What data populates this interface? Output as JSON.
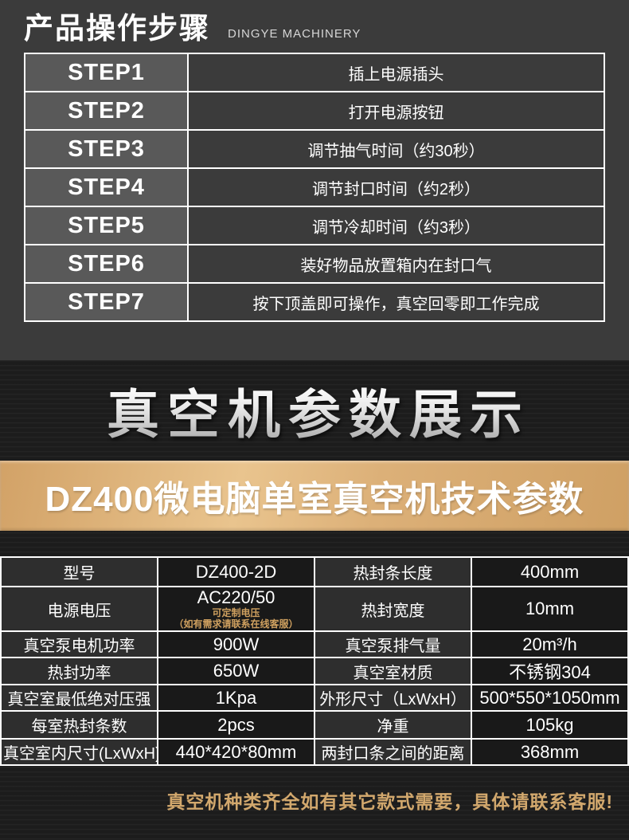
{
  "header": {
    "title": "产品操作步骤",
    "subtitle": "DINGYE MACHINERY"
  },
  "steps": [
    {
      "step": "STEP1",
      "desc": "插上电源插头"
    },
    {
      "step": "STEP2",
      "desc": "打开电源按钮"
    },
    {
      "step": "STEP3",
      "desc": "调节抽气时间（约30秒）"
    },
    {
      "step": "STEP4",
      "desc": "调节封口时间（约2秒）"
    },
    {
      "step": "STEP5",
      "desc": "调节冷却时间（约3秒）"
    },
    {
      "step": "STEP6",
      "desc": "装好物品放置箱内在封口气"
    },
    {
      "step": "STEP7",
      "desc": "按下顶盖即可操作，真空回零即工作完成"
    }
  ],
  "params_banner": {
    "title": "真空机参数展示"
  },
  "model_banner": {
    "title": "DZ400微电脑单室真空机技术参数"
  },
  "specs": {
    "rows": [
      {
        "c0": "型号",
        "c1": "DZ400-2D",
        "c2": "热封条长度",
        "c3": "400mm"
      },
      {
        "c0": "电源电压",
        "c1": "AC220/50",
        "c1_note1": "可定制电压",
        "c1_note2": "（如有需求请联系在线客服）",
        "c2": "热封宽度",
        "c3": "10mm"
      },
      {
        "c0": "真空泵电机功率",
        "c1": "900W",
        "c2": "真空泵排气量",
        "c3": "20m³/h"
      },
      {
        "c0": "热封功率",
        "c1": "650W",
        "c2": "真空室材质",
        "c3": "不锈钢304"
      },
      {
        "c0": "真空室最低绝对压强",
        "c1": "1Kpa",
        "c2": "外形尺寸（LxWxH）",
        "c3": "500*550*1050mm"
      },
      {
        "c0": "每室热封条数",
        "c1": "2pcs",
        "c2": "净重",
        "c3": "105kg"
      },
      {
        "c0": "真空室内尺寸(LxWxH)",
        "c1": "440*420*80mm",
        "c2": "两封口条之间的距离",
        "c3": "368mm"
      }
    ]
  },
  "footer": {
    "note": "真空机种类齐全如有其它款式需要，具体请联系客服!"
  },
  "colors": {
    "header_bg": "#3b3b3b",
    "step_label_bg": "#595959",
    "dark_section_bg": "#1d1d1d",
    "gold_banner": "#dcb078",
    "spec_label_bg": "#2e2e2e",
    "spec_value_bg": "#191919",
    "accent_gold_text": "#d2a86d",
    "table_border": "#ffffff"
  }
}
